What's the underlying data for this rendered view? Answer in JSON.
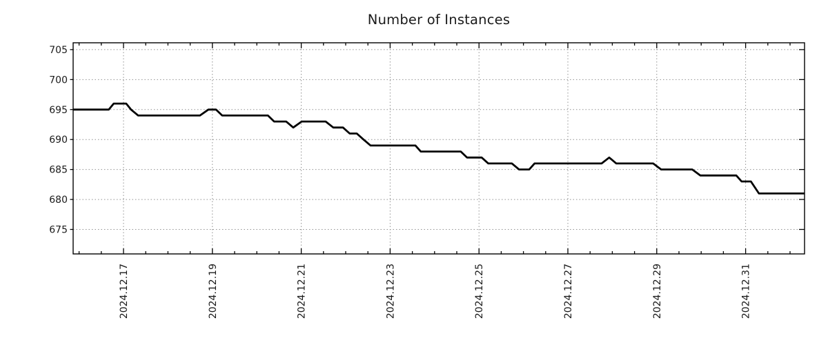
{
  "chart_data": {
    "type": "line",
    "title": "Number of Instances",
    "xlabel": "",
    "ylabel": "",
    "grid": "dotted gray, on both axes at labeled ticks",
    "legend": "none",
    "line_color": "#000000",
    "background_color": "#ffffff",
    "x_axis": {
      "unit": "date",
      "note": "t values are fractional days after 2024-12-17 00:00; labels every 2 days, rotated 90deg reading bottom-to-top; minor ticks every 0.5 day",
      "major_tick_t": [
        0,
        2,
        4,
        6,
        8,
        10,
        12,
        14
      ],
      "tick_labels": [
        "2024.12.17",
        "2024.12.19",
        "2024.12.21",
        "2024.12.23",
        "2024.12.25",
        "2024.12.27",
        "2024.12.29",
        "2024.12.31"
      ],
      "minor_tick_step_days": 0.5,
      "xlim_t": [
        -1.13,
        15.33
      ]
    },
    "y_axis": {
      "tick_values": [
        675,
        680,
        685,
        690,
        695,
        700,
        705
      ],
      "tick_labels": [
        "675",
        "680",
        "685",
        "690",
        "695",
        "700",
        "705"
      ],
      "ylim": [
        670.9,
        706.1
      ]
    },
    "series": [
      {
        "name": "Number of Instances",
        "color": "#000000",
        "points_t_v": [
          [
            -1.13,
            695
          ],
          [
            -0.33,
            695
          ],
          [
            -0.22,
            696
          ],
          [
            0.06,
            696
          ],
          [
            0.17,
            695
          ],
          [
            0.33,
            694
          ],
          [
            1.72,
            694
          ],
          [
            1.91,
            695
          ],
          [
            2.08,
            695
          ],
          [
            2.22,
            694
          ],
          [
            3.25,
            694
          ],
          [
            3.39,
            693
          ],
          [
            3.66,
            693
          ],
          [
            3.82,
            692
          ],
          [
            4.01,
            693
          ],
          [
            4.55,
            693
          ],
          [
            4.72,
            692
          ],
          [
            4.94,
            692
          ],
          [
            5.09,
            691
          ],
          [
            5.25,
            691
          ],
          [
            5.4,
            690
          ],
          [
            5.56,
            689
          ],
          [
            6.57,
            689
          ],
          [
            6.69,
            688
          ],
          [
            7.59,
            688
          ],
          [
            7.73,
            687
          ],
          [
            8.06,
            687
          ],
          [
            8.21,
            686
          ],
          [
            8.74,
            686
          ],
          [
            8.9,
            685
          ],
          [
            9.13,
            685
          ],
          [
            9.25,
            686
          ],
          [
            10.76,
            686
          ],
          [
            10.93,
            687
          ],
          [
            11.09,
            686
          ],
          [
            11.92,
            686
          ],
          [
            12.1,
            685
          ],
          [
            12.8,
            685
          ],
          [
            12.98,
            684
          ],
          [
            13.79,
            684
          ],
          [
            13.91,
            683
          ],
          [
            14.12,
            683
          ],
          [
            14.3,
            681
          ],
          [
            15.33,
            681
          ]
        ]
      }
    ]
  }
}
